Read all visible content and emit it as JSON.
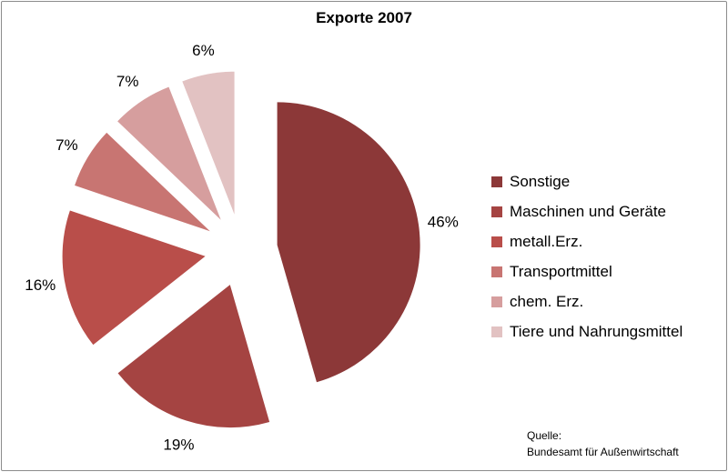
{
  "chart_data": {
    "type": "pie",
    "title": "Exporte 2007",
    "categories": [
      "Sonstige",
      "Maschinen und Geräte",
      "metall.Erz.",
      "Transportmittel",
      "chem. Erz.",
      "Tiere und Nahrungsmittel"
    ],
    "values": [
      46,
      19,
      16,
      7,
      7,
      6
    ],
    "data_labels": [
      "46%",
      "19%",
      "16%",
      "7%",
      "7%",
      "6%"
    ],
    "colors": [
      "#8c3838",
      "#a54442",
      "#b94e4a",
      "#c87572",
      "#d69e9e",
      "#e2c2c2"
    ],
    "exploded": true,
    "legend_position": "right",
    "source_label": "Quelle:",
    "source": "Bundesamt für Außenwirtschaft"
  }
}
